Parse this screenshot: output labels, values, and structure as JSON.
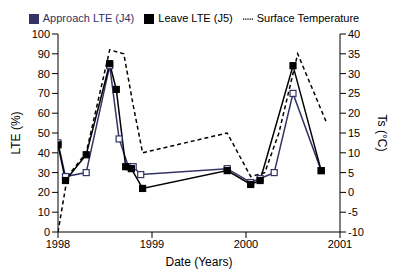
{
  "chart_data": {
    "type": "line",
    "x_label": "Date  (Years)",
    "y_label": "LTE (%)",
    "y2_label": "Ts (°C)",
    "xlim": [
      1998,
      2001
    ],
    "xticks": [
      1998,
      1999,
      2000,
      2001
    ],
    "ylim": [
      0,
      100
    ],
    "yticks": [
      0,
      10,
      20,
      30,
      40,
      50,
      60,
      70,
      80,
      90,
      100
    ],
    "y2lim": [
      -10,
      40
    ],
    "y2ticks": [
      -10,
      -5,
      0,
      5,
      10,
      15,
      20,
      25,
      30,
      35,
      40
    ],
    "grid": false,
    "legend": "top",
    "series": [
      {
        "name": "Approach LTE (J4)",
        "color": "#333366",
        "marker": "square_open",
        "line_style": "solid",
        "x": [
          1998.0,
          1998.08,
          1998.3,
          1998.55,
          1998.65,
          1998.75,
          1998.8,
          1998.88,
          1999.8,
          2000.05,
          2000.15,
          2000.3,
          2000.5,
          2000.8
        ],
        "values": [
          45,
          28,
          30,
          84,
          47,
          33,
          33,
          29,
          32,
          25,
          27,
          30,
          70,
          31
        ]
      },
      {
        "name": "Leave LTE (J5)",
        "color": "#000000",
        "marker": "square_filled",
        "line_style": "solid",
        "x": [
          1998.0,
          1998.08,
          1998.3,
          1998.55,
          1998.62,
          1998.72,
          1998.78,
          1998.9,
          1999.8,
          2000.05,
          2000.15,
          2000.5,
          2000.8
        ],
        "values": [
          44,
          26,
          39,
          85,
          72,
          33,
          32,
          22,
          31,
          24,
          26,
          84,
          31
        ]
      },
      {
        "name": "Surface Temperature",
        "color": "#000000",
        "marker": "none",
        "line_style": "dashed",
        "axis": "y2",
        "x": [
          1998.0,
          1998.1,
          1998.3,
          1998.55,
          1998.7,
          1998.8,
          1998.9,
          1999.8,
          2000.05,
          2000.2,
          2000.35,
          2000.55,
          2000.85
        ],
        "values": [
          -10,
          4,
          10,
          36,
          35,
          22,
          10,
          15,
          4,
          5,
          15,
          35,
          18
        ]
      }
    ]
  }
}
